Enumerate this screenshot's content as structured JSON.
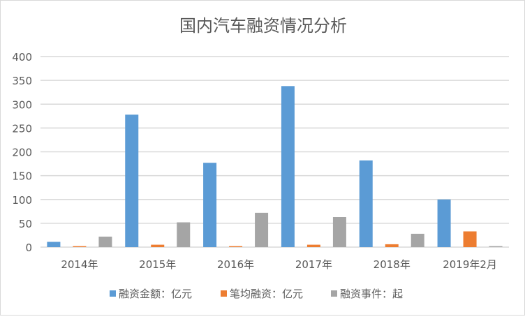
{
  "chart_data": {
    "type": "bar",
    "title": "国内汽车融资情况分析",
    "categories": [
      "2014年",
      "2015年",
      "2016年",
      "2017年",
      "2018年",
      "2019年2月"
    ],
    "series": [
      {
        "name": "融资金额：亿元",
        "color": "#5b9bd5",
        "values": [
          11,
          278,
          177,
          338,
          182,
          100
        ]
      },
      {
        "name": "笔均融资：亿元",
        "color": "#ed7d31",
        "values": [
          2,
          5,
          2,
          5,
          6,
          33
        ]
      },
      {
        "name": "融资事件：起",
        "color": "#a5a5a5",
        "values": [
          22,
          52,
          72,
          63,
          28,
          2
        ]
      }
    ],
    "ylim": [
      0,
      400
    ],
    "yticks": [
      0,
      50,
      100,
      150,
      200,
      250,
      300,
      350,
      400
    ],
    "grid": true,
    "legend": "bottom"
  }
}
